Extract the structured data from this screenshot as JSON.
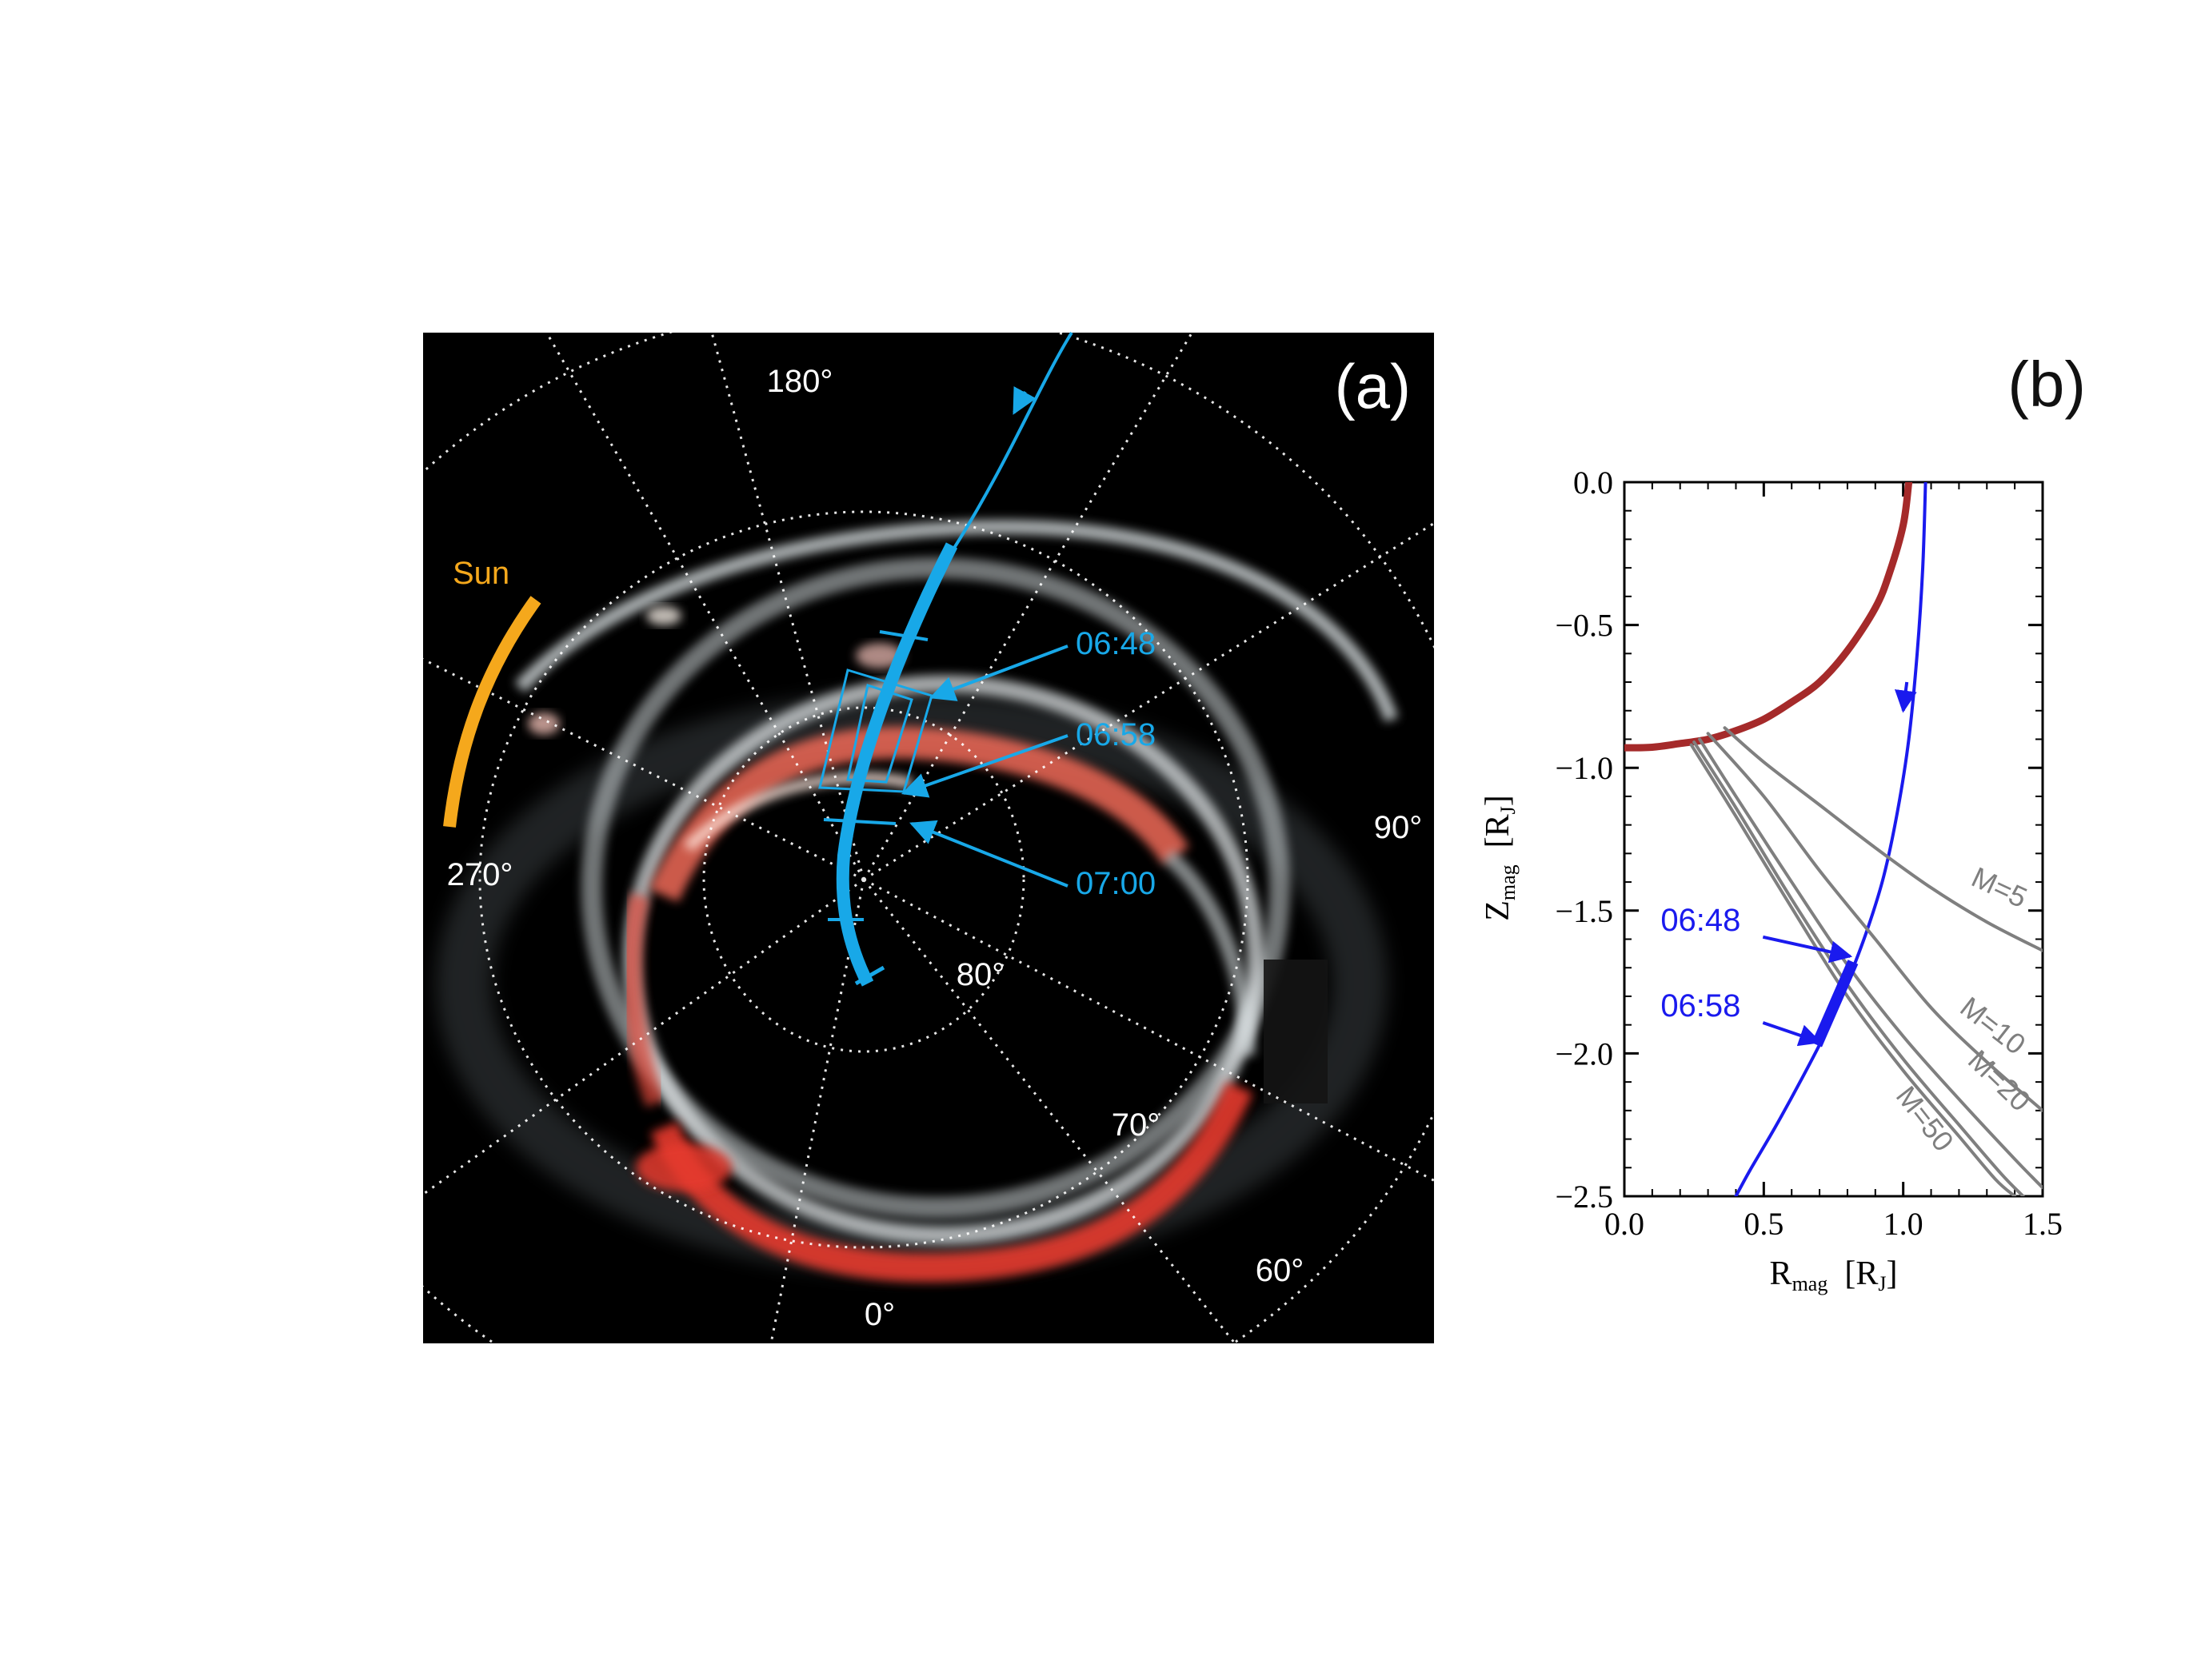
{
  "panel_a": {
    "label": "(a)",
    "sun_label": "Sun",
    "longitude_labels": [
      "180°",
      "270°",
      "90°",
      "0°"
    ],
    "latitude_labels": [
      "80°",
      "70°",
      "60°"
    ],
    "time_labels": [
      "06:48",
      "06:58",
      "07:00"
    ],
    "colors": {
      "background": "#000000",
      "grid": "#ffffff",
      "sun": "#f5a81c",
      "trajectory": "#18a8e8",
      "aurora_red": "#e63a2e",
      "aurora_white": "#d8dfe3"
    }
  },
  "panel_b": {
    "label": "(b)"
  },
  "chart_data": {
    "type": "line",
    "title": "",
    "xlabel": "R",
    "xlabel_sub": "mag",
    "xlabel_unit": "[R",
    "xlabel_unit_sub": "J",
    "xlabel_unit_end": "]",
    "ylabel": "Z",
    "ylabel_sub": "mag",
    "ylabel_unit": "[R",
    "ylabel_unit_sub": "J",
    "ylabel_unit_end": "]",
    "xlim": [
      0.0,
      1.5
    ],
    "ylim": [
      -2.5,
      0.0
    ],
    "xticks": [
      0.0,
      0.5,
      1.0,
      1.5
    ],
    "xtick_labels": [
      "0.0",
      "0.5",
      "1.0",
      "1.5"
    ],
    "yticks": [
      0.0,
      -0.5,
      -1.0,
      -1.5,
      -2.0,
      -2.5
    ],
    "ytick_labels": [
      "0.0",
      "−0.5",
      "−1.0",
      "−1.5",
      "−2.0",
      "−2.5"
    ],
    "series": [
      {
        "name": "Jupiter surface",
        "color": "#a52a2a",
        "width": 9,
        "x": [
          0.0,
          0.1,
          0.2,
          0.3,
          0.4,
          0.5,
          0.6,
          0.7,
          0.8,
          0.9,
          0.95,
          1.0,
          1.02
        ],
        "y": [
          -0.93,
          -0.928,
          -0.915,
          -0.9,
          -0.87,
          -0.83,
          -0.77,
          -0.7,
          -0.59,
          -0.44,
          -0.32,
          -0.15,
          0.0
        ]
      },
      {
        "name": "Juno trajectory",
        "color": "#1a1aee",
        "width": 4,
        "x": [
          1.08,
          1.07,
          1.05,
          1.02,
          0.98,
          0.93,
          0.87,
          0.8,
          0.72,
          0.63,
          0.54,
          0.45,
          0.4
        ],
        "y": [
          0.0,
          -0.3,
          -0.6,
          -0.9,
          -1.15,
          -1.38,
          -1.57,
          -1.75,
          -1.93,
          -2.1,
          -2.26,
          -2.41,
          -2.5
        ]
      },
      {
        "name": "M=5",
        "color": "#7f7f7f",
        "width": 4,
        "x": [
          0.36,
          0.5,
          0.7,
          0.9,
          1.1,
          1.3,
          1.5
        ],
        "y": [
          -0.86,
          -0.98,
          -1.13,
          -1.28,
          -1.42,
          -1.54,
          -1.64
        ]
      },
      {
        "name": "M=10",
        "color": "#7f7f7f",
        "width": 4,
        "x": [
          0.3,
          0.5,
          0.7,
          0.9,
          1.1,
          1.3,
          1.5
        ],
        "y": [
          -0.88,
          -1.1,
          -1.36,
          -1.6,
          -1.84,
          -2.03,
          -2.2
        ]
      },
      {
        "name": "M=20",
        "color": "#7f7f7f",
        "width": 4,
        "x": [
          0.27,
          0.4,
          0.6,
          0.8,
          1.0,
          1.2,
          1.4,
          1.5
        ],
        "y": [
          -0.9,
          -1.1,
          -1.4,
          -1.69,
          -1.94,
          -2.16,
          -2.37,
          -2.47
        ]
      },
      {
        "name": "M=50",
        "color": "#7f7f7f",
        "width": 4,
        "x": [
          0.25,
          0.4,
          0.6,
          0.8,
          1.0,
          1.2,
          1.35,
          1.43
        ],
        "y": [
          -0.91,
          -1.14,
          -1.46,
          -1.76,
          -2.02,
          -2.25,
          -2.42,
          -2.5
        ]
      },
      {
        "name": "M=100",
        "color": "#7f7f7f",
        "width": 4,
        "x": [
          0.24,
          0.4,
          0.6,
          0.8,
          1.0,
          1.2,
          1.33,
          1.4
        ],
        "y": [
          -0.92,
          -1.17,
          -1.49,
          -1.8,
          -2.06,
          -2.29,
          -2.44,
          -2.5
        ]
      }
    ],
    "curve_labels": [
      {
        "text": "M=5",
        "x": 1.33,
        "y": -1.45,
        "angle": 25
      },
      {
        "text": "M=10",
        "x": 1.3,
        "y": -1.93,
        "angle": 38
      },
      {
        "text": "M=20",
        "x": 1.32,
        "y": -2.12,
        "angle": 44
      },
      {
        "text": "M=50",
        "x": 1.05,
        "y": -2.25,
        "angle": 52
      }
    ],
    "highlight": {
      "color": "#1a1aee",
      "x": [
        0.82,
        0.69
      ],
      "y": [
        -1.68,
        -1.97
      ]
    },
    "annotations": [
      {
        "text": "06:48",
        "color": "#1a1aee",
        "x_text": 0.13,
        "y_text": -1.57,
        "x_tip": 0.81,
        "y_tip": -1.66
      },
      {
        "text": "06:58",
        "color": "#1a1aee",
        "x_text": 0.13,
        "y_text": -1.87,
        "x_tip": 0.7,
        "y_tip": -1.96
      }
    ]
  }
}
